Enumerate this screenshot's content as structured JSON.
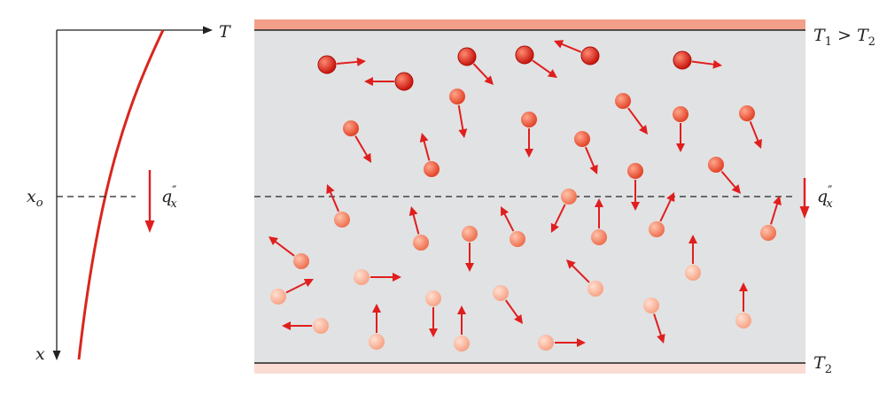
{
  "colors": {
    "arrow": "#e01e1e",
    "profile": "#d9261c",
    "slab_fill": "#e1e2e3",
    "hot_wall": "#f2a08a",
    "cold_wall": "#fbdcd4",
    "molecule_hot": "#d8231a",
    "molecule_cold": "#f8c8b4"
  },
  "axes": {
    "x_axis_label": "x",
    "t_axis_label": "T",
    "xo_label": "x",
    "xo_sub": "o",
    "flux_label": "q",
    "flux_prime": "″",
    "flux_sub": "x"
  },
  "walls": {
    "top": {
      "t_label": "T",
      "t_sub": "1",
      "gt": " > ",
      "t2_label": "T",
      "t2_sub": "2"
    },
    "bottom": {
      "t_label": "T",
      "t_sub": "2"
    }
  },
  "icons": {
    "molecule": "sphere-molecule-icon",
    "velocity": "velocity-arrow-icon",
    "flux": "heat-flux-arrow-icon"
  }
}
